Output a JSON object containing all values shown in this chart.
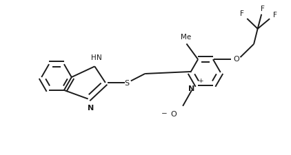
{
  "background_color": "#ffffff",
  "line_color": "#1a1a1a",
  "line_width": 1.4,
  "figsize": [
    4.22,
    2.26
  ],
  "dpi": 100,
  "xlim": [
    0,
    4.22
  ],
  "ylim": [
    0,
    2.26
  ]
}
